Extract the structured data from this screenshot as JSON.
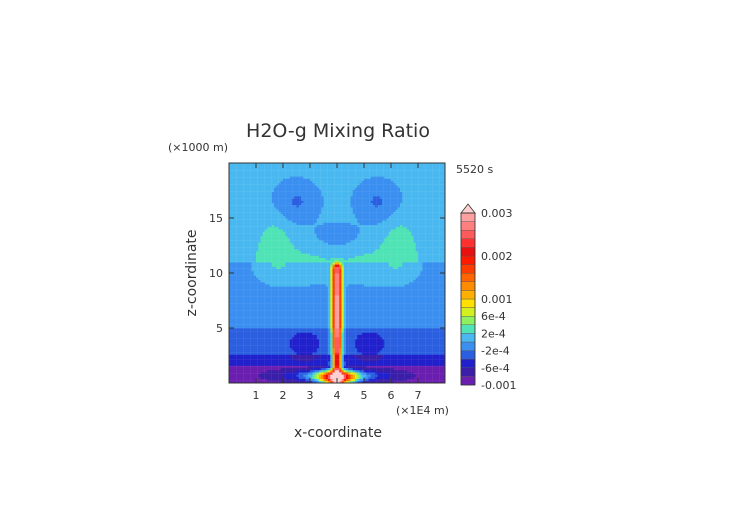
{
  "chart_data": {
    "type": "heatmap",
    "title": "H2O-g Mixing Ratio",
    "xlabel": "x-coordinate",
    "ylabel": "z-coordinate",
    "x_unit": "(×1E4 m)",
    "y_unit": "(×1000 m)",
    "time_label": "5520 s",
    "xlim": [
      0,
      8
    ],
    "ylim": [
      0,
      20
    ],
    "x_ticks": [
      1,
      2,
      3,
      4,
      5,
      6,
      7
    ],
    "y_ticks": [
      5,
      10,
      15
    ],
    "colorbar": {
      "levels": [
        -0.001,
        -0.0008,
        -0.0006,
        -0.0004,
        -0.0002,
        0,
        0.0002,
        0.0004,
        0.0006,
        0.0008,
        0.001,
        0.0012,
        0.0014,
        0.0016,
        0.0018,
        0.002,
        0.0022,
        0.0024,
        0.0026,
        0.0028,
        0.003
      ],
      "colors": [
        "#6a1fb0",
        "#3b1fa8",
        "#2020cc",
        "#2b5fe0",
        "#3a8ff0",
        "#4ab8f0",
        "#4fe3b5",
        "#8cf060",
        "#d2f020",
        "#ffe000",
        "#ffb000",
        "#ff8c00",
        "#ff6400",
        "#ff3c00",
        "#ff1a00",
        "#e81010",
        "#ff3030",
        "#ff5a5a",
        "#ff7e7e",
        "#ffa0a0"
      ],
      "top_color": "#ffd0d0",
      "labels": [
        {
          "value": 0.003,
          "text": "0.003"
        },
        {
          "value": 0.002,
          "text": "0.002"
        },
        {
          "value": 0.001,
          "text": "0.001"
        },
        {
          "value": 0.0006,
          "text": "6e-4"
        },
        {
          "value": 0.0002,
          "text": "2e-4"
        },
        {
          "value": -0.0002,
          "text": "-2e-4"
        },
        {
          "value": -0.0006,
          "text": "-6e-4"
        },
        {
          "value": -0.001,
          "text": "-0.001"
        }
      ]
    }
  }
}
